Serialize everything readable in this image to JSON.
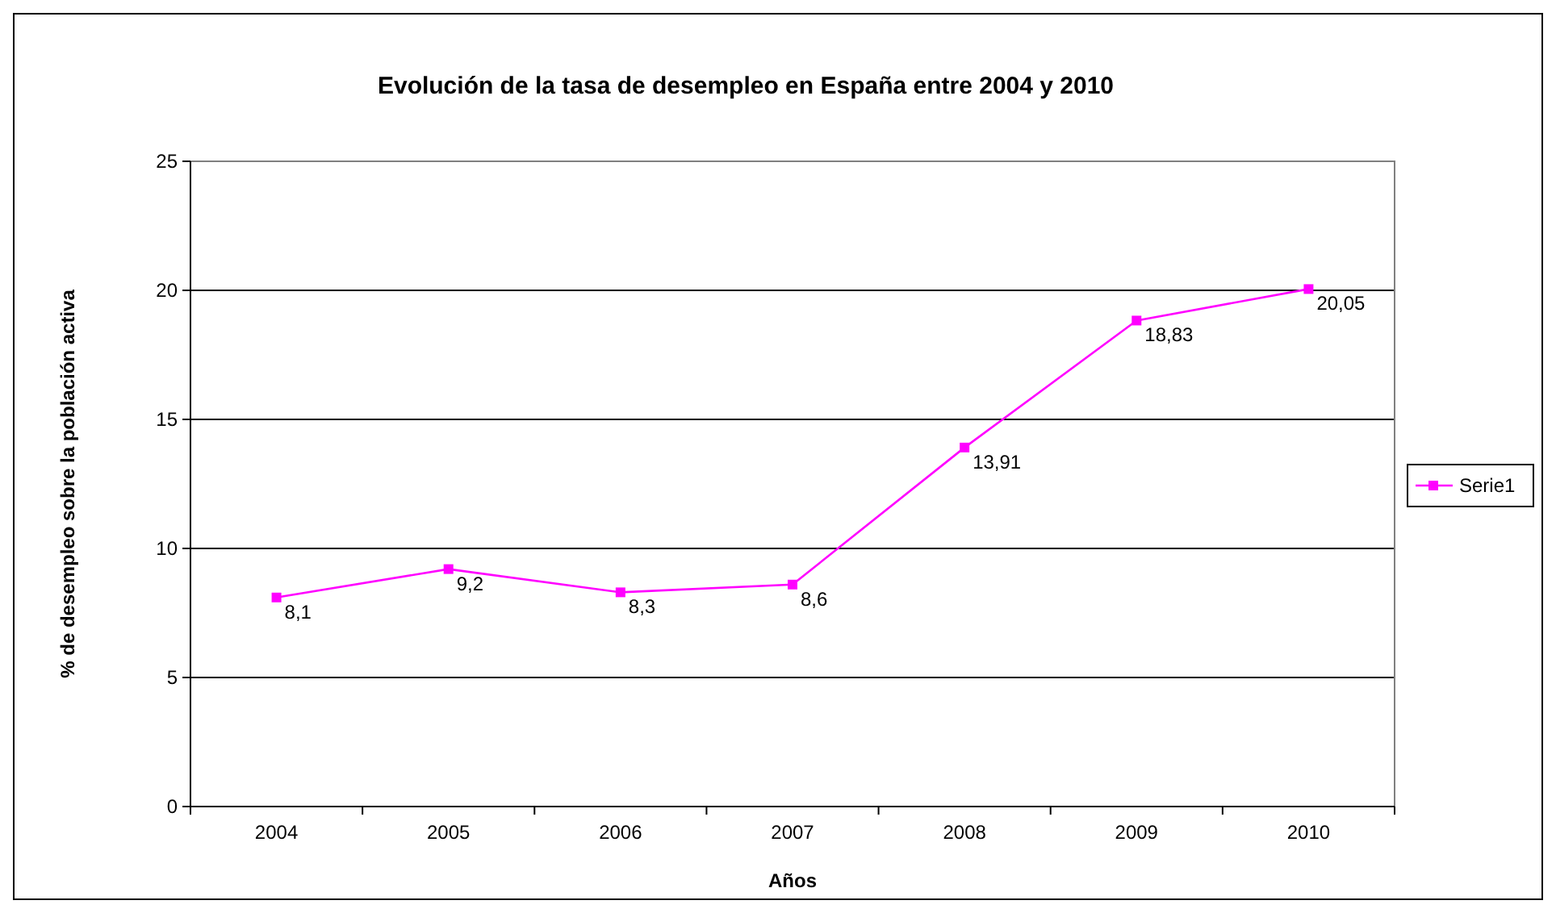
{
  "chart_data": {
    "type": "line",
    "title": "Evolución de la tasa de desempleo en España entre 2004 y 2010",
    "xlabel": "Años",
    "ylabel": "% de desempleo sobre la población activa",
    "categories": [
      "2004",
      "2005",
      "2006",
      "2007",
      "2008",
      "2009",
      "2010"
    ],
    "series": [
      {
        "name": "Serie1",
        "color": "#ff00ff",
        "values": [
          8.1,
          9.2,
          8.3,
          8.6,
          13.91,
          18.83,
          20.05
        ],
        "value_labels": [
          "8,1",
          "9,2",
          "8,3",
          "8,6",
          "13,91",
          "18,83",
          "20,05"
        ]
      }
    ],
    "ylim": [
      0,
      25
    ],
    "yticks": [
      0,
      5,
      10,
      15,
      20,
      25
    ],
    "grid": "y",
    "legend": "right",
    "marker": "square"
  }
}
